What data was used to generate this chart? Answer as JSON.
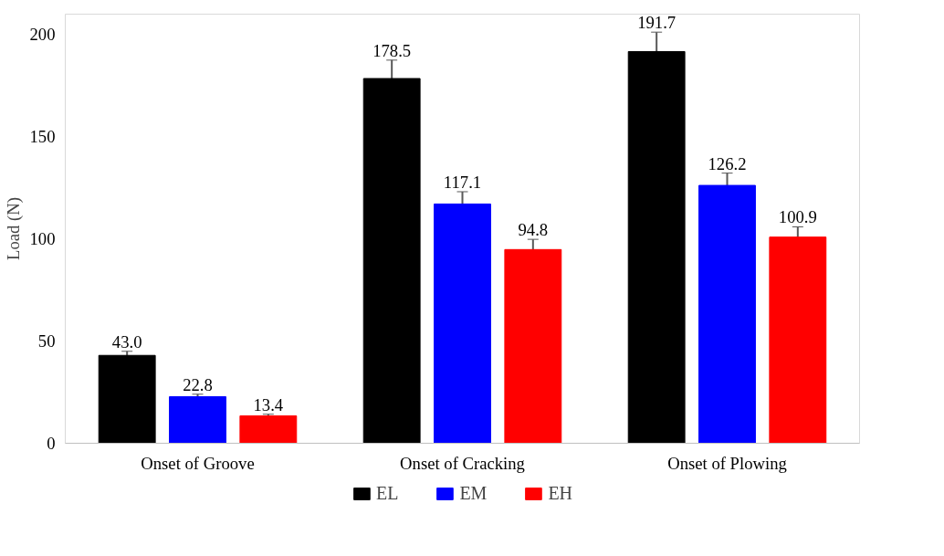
{
  "chart_data": {
    "type": "bar",
    "ylabel": "Load (N)",
    "categories": [
      "Onset of Groove",
      "Onset of Cracking",
      "Onset of Plowing"
    ],
    "series": [
      {
        "name": "EL",
        "color": "#000000",
        "values": [
          43.0,
          178.5,
          191.7
        ],
        "errors": [
          2,
          9,
          9.5
        ],
        "value_labels": [
          "43.0",
          "178.5",
          "191.7"
        ]
      },
      {
        "name": "EM",
        "color": "#0000ff",
        "values": [
          22.8,
          117.1,
          126.2
        ],
        "errors": [
          1.2,
          6,
          6
        ],
        "value_labels": [
          "22.8",
          "117.1",
          "126.2"
        ]
      },
      {
        "name": "EH",
        "color": "#ff0000",
        "values": [
          13.4,
          94.8,
          100.9
        ],
        "errors": [
          0.8,
          5,
          5
        ],
        "value_labels": [
          "13.4",
          "94.8",
          "100.9"
        ]
      }
    ],
    "ylim": [
      0,
      210
    ],
    "yticks": [
      0,
      50,
      100,
      150,
      200
    ],
    "grid": false,
    "legend": "bottom"
  }
}
